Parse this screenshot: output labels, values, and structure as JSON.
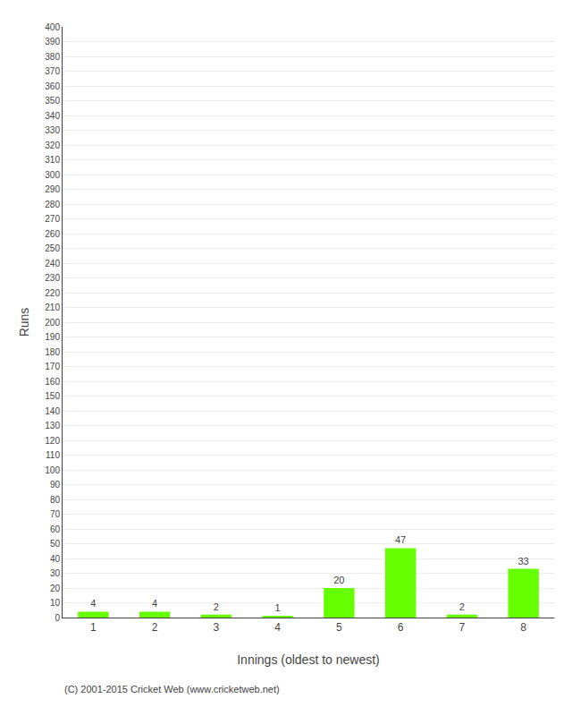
{
  "chart_data": {
    "type": "bar",
    "xlabel": "Innings (oldest to newest)",
    "ylabel": "Runs",
    "categories": [
      "1",
      "2",
      "3",
      "4",
      "5",
      "6",
      "7",
      "8"
    ],
    "values": [
      4,
      4,
      2,
      1,
      20,
      47,
      2,
      33
    ],
    "color": "#66ff00",
    "ylim": [
      0,
      400
    ],
    "yticks": [
      0,
      10,
      20,
      30,
      40,
      50,
      60,
      70,
      80,
      90,
      100,
      110,
      120,
      130,
      140,
      150,
      160,
      170,
      180,
      190,
      200,
      210,
      220,
      230,
      240,
      250,
      260,
      270,
      280,
      290,
      300,
      310,
      320,
      330,
      340,
      350,
      360,
      370,
      380,
      390,
      400
    ],
    "grid": true,
    "data_labels": true,
    "annotations": [
      "(C) 2001-2015 Cricket Web (www.cricketweb.net)"
    ]
  }
}
